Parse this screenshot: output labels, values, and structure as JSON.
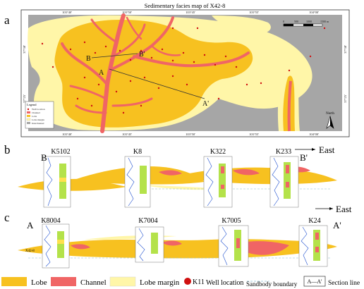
{
  "panel_a": {
    "panel_letter": "a",
    "title": "Sedimentary facies map of  X42-8",
    "top_ticks": [
      "103°40'",
      "103°50'",
      "103°45'",
      "103°55'",
      "104°00'"
    ],
    "bottom_ticks": [
      "103°40'",
      "103°45'",
      "103°50'",
      "103°55'",
      "104°00'"
    ],
    "left_ticks": [
      "37°30'",
      "37°25'"
    ],
    "right_ticks": [
      "37°30'",
      "37°25'"
    ],
    "scalebar_labels": [
      "0",
      "500",
      "1000",
      "1500 m"
    ],
    "north_label": "North",
    "section_labels": {
      "B": "B",
      "B_prime": "B'",
      "A": "A",
      "A_prime": "A'"
    },
    "inner_legend": {
      "title": "Legend",
      "items": [
        "Well location",
        "Channel",
        "Lobe",
        "Lobe margin",
        "Interchannel"
      ]
    }
  },
  "panel_b": {
    "panel_letter": "b",
    "section_start": "B",
    "section_end": "B'",
    "direction": "East",
    "wells": [
      "K5102",
      "K8",
      "K322",
      "K233"
    ]
  },
  "panel_c": {
    "panel_letter": "c",
    "section_start": "A",
    "section_end": "A'",
    "direction": "East",
    "wells": [
      "K8004",
      "K7004",
      "K7005",
      "K24"
    ],
    "layer_label": "X42-8"
  },
  "legend": {
    "lobe": "Lobe",
    "channel": "Channel",
    "lobe_margin": "Lobe  margin",
    "well_symbol": "K11",
    "well": "Well location",
    "sandbody": "Sandbody boundary",
    "section_symbol": "A—A'",
    "section": "Section line"
  },
  "colors": {
    "lobe": "#f7c120",
    "channel": "#f06565",
    "lobe_margin": "#fff6a8",
    "interchannel": "#a6a6a6",
    "well_marker": "#d01010"
  }
}
